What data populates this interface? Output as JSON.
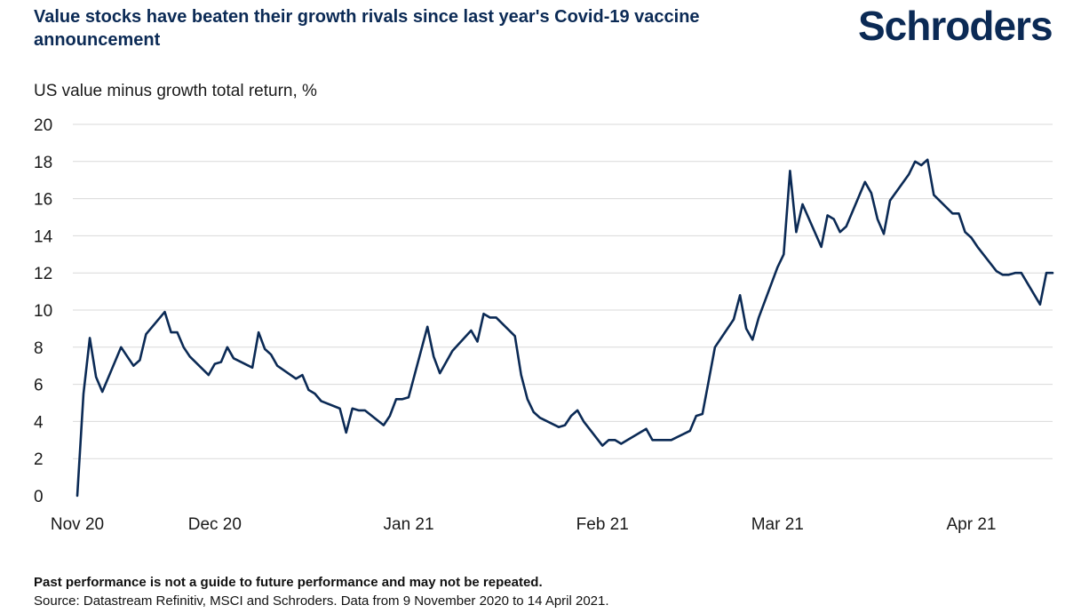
{
  "header": {
    "title": "Value stocks have beaten their growth rivals since last year's Covid-19 vaccine announcement",
    "brand": "Schroders"
  },
  "footer": {
    "disclaimer": "Past performance is not a guide to future performance and may not be repeated.",
    "source": "Source: Datastream Refinitiv, MSCI and Schroders. Data from 9 November 2020 to 14 April 2021."
  },
  "chart_data": {
    "type": "line",
    "title": "Value stocks have beaten their growth rivals since last year's Covid-19 vaccine announcement",
    "ylabel": "US value minus growth total return, %",
    "xlabel": "",
    "ylim": [
      0,
      20
    ],
    "yticks": [
      0,
      2,
      4,
      6,
      8,
      10,
      12,
      14,
      16,
      18,
      20
    ],
    "xticks": [
      {
        "date": "2020-11-09",
        "label": "Nov 20"
      },
      {
        "date": "2020-12-01",
        "label": "Dec 20"
      },
      {
        "date": "2021-01-01",
        "label": "Jan 21"
      },
      {
        "date": "2021-02-01",
        "label": "Feb 21"
      },
      {
        "date": "2021-03-01",
        "label": "Mar 21"
      },
      {
        "date": "2021-04-01",
        "label": "Apr 21"
      }
    ],
    "grid": "horizontal",
    "color": "#0b2a55",
    "series": [
      {
        "x": [
          "2020-11-09",
          "2020-11-10",
          "2020-11-11",
          "2020-11-12",
          "2020-11-13",
          "2020-11-16",
          "2020-11-17",
          "2020-11-18",
          "2020-11-19",
          "2020-11-20",
          "2020-11-23",
          "2020-11-24",
          "2020-11-25",
          "2020-11-26",
          "2020-11-27",
          "2020-11-30",
          "2020-12-01",
          "2020-12-02",
          "2020-12-03",
          "2020-12-04",
          "2020-12-07",
          "2020-12-08",
          "2020-12-09",
          "2020-12-10",
          "2020-12-11",
          "2020-12-14",
          "2020-12-15",
          "2020-12-16",
          "2020-12-17",
          "2020-12-18",
          "2020-12-21",
          "2020-12-22",
          "2020-12-23",
          "2020-12-24",
          "2020-12-25",
          "2020-12-28",
          "2020-12-29",
          "2020-12-30",
          "2020-12-31",
          "2021-01-01",
          "2021-01-04",
          "2021-01-05",
          "2021-01-06",
          "2021-01-07",
          "2021-01-08",
          "2021-01-11",
          "2021-01-12",
          "2021-01-13",
          "2021-01-14",
          "2021-01-15",
          "2021-01-18",
          "2021-01-19",
          "2021-01-20",
          "2021-01-21",
          "2021-01-22",
          "2021-01-25",
          "2021-01-26",
          "2021-01-27",
          "2021-01-28",
          "2021-01-29",
          "2021-02-01",
          "2021-02-02",
          "2021-02-03",
          "2021-02-04",
          "2021-02-05",
          "2021-02-08",
          "2021-02-09",
          "2021-02-10",
          "2021-02-11",
          "2021-02-12",
          "2021-02-15",
          "2021-02-16",
          "2021-02-17",
          "2021-02-18",
          "2021-02-19",
          "2021-02-22",
          "2021-02-23",
          "2021-02-24",
          "2021-02-25",
          "2021-02-26",
          "2021-03-01",
          "2021-03-02",
          "2021-03-03",
          "2021-03-04",
          "2021-03-05",
          "2021-03-08",
          "2021-03-09",
          "2021-03-10",
          "2021-03-11",
          "2021-03-12",
          "2021-03-15",
          "2021-03-16",
          "2021-03-17",
          "2021-03-18",
          "2021-03-19",
          "2021-03-22",
          "2021-03-23",
          "2021-03-24",
          "2021-03-25",
          "2021-03-26",
          "2021-03-29",
          "2021-03-30",
          "2021-03-31",
          "2021-04-01",
          "2021-04-02",
          "2021-04-05",
          "2021-04-06",
          "2021-04-07",
          "2021-04-08",
          "2021-04-09",
          "2021-04-12",
          "2021-04-13",
          "2021-04-14"
        ],
        "values": [
          0.0,
          5.5,
          8.5,
          6.4,
          5.6,
          8.0,
          7.5,
          7.0,
          7.3,
          8.7,
          9.9,
          8.8,
          8.8,
          8.0,
          7.5,
          6.5,
          7.1,
          7.2,
          8.0,
          7.4,
          6.9,
          8.8,
          7.9,
          7.6,
          7.0,
          6.3,
          6.5,
          5.7,
          5.5,
          5.1,
          4.7,
          3.4,
          4.7,
          4.6,
          4.6,
          3.8,
          4.3,
          5.2,
          5.2,
          5.3,
          9.1,
          7.5,
          6.6,
          7.2,
          7.8,
          8.9,
          8.3,
          9.8,
          9.6,
          9.6,
          8.6,
          6.5,
          5.2,
          4.5,
          4.2,
          3.7,
          3.8,
          4.3,
          4.6,
          4.0,
          2.7,
          3.0,
          3.0,
          2.8,
          3.0,
          3.6,
          3.0,
          3.0,
          3.0,
          3.0,
          3.5,
          4.3,
          4.4,
          6.2,
          8.0,
          9.5,
          10.8,
          9.0,
          8.4,
          9.6,
          12.3,
          13.0,
          17.5,
          14.2,
          15.7,
          13.4,
          15.1,
          14.9,
          14.2,
          14.5,
          16.9,
          16.3,
          14.9,
          14.1,
          15.9,
          17.3,
          18.0,
          17.8,
          18.1,
          16.2,
          15.2,
          15.2,
          14.2,
          13.9,
          13.4,
          12.1,
          11.9,
          11.9,
          12.0,
          12.0,
          10.3,
          12.0,
          12.0
        ]
      }
    ]
  }
}
